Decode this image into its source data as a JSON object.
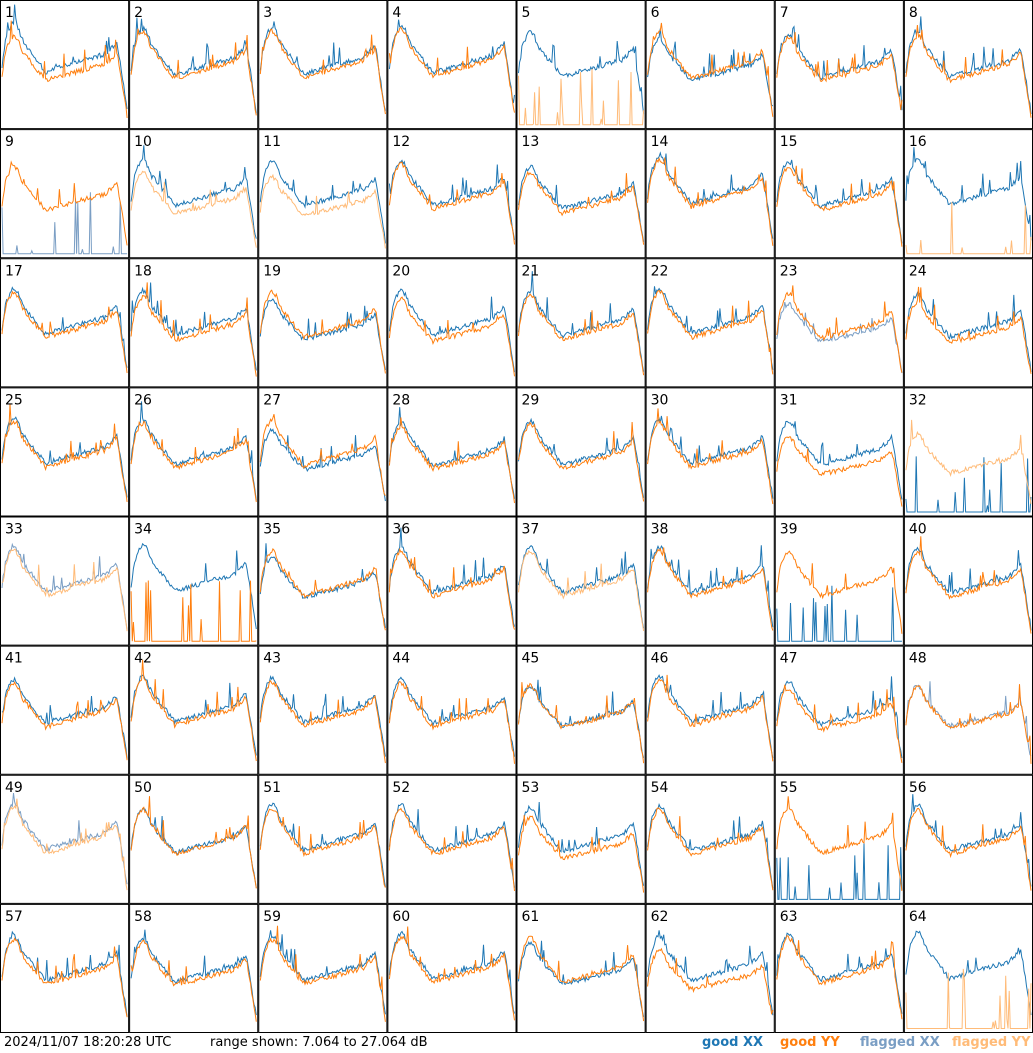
{
  "timestamp": "2024/11/07 18:20:28 UTC",
  "range_text": "range shown: 7.064 to 27.064 dB",
  "legend": {
    "good_xx": "good XX",
    "good_yy": "good YY",
    "flagged_xx": "flagged XX",
    "flagged_yy": "flagged YY"
  },
  "colors": {
    "good_xx": "#1f77b4",
    "good_yy": "#ff7f0e",
    "flagged_xx": "#7a9ec4",
    "flagged_yy": "#ffbb78"
  },
  "chart_data": {
    "type": "line",
    "grid": {
      "rows": 8,
      "cols": 8
    },
    "y_range_db": [
      7.064,
      27.064
    ],
    "panels": [
      {
        "id": "1",
        "xx": {
          "status": "good",
          "level": 0.72
        },
        "yy": {
          "status": "good",
          "level": 0.55
        }
      },
      {
        "id": "2",
        "xx": {
          "status": "good",
          "level": 0.62
        },
        "yy": {
          "status": "good",
          "level": 0.62
        }
      },
      {
        "id": "3",
        "xx": {
          "status": "good",
          "level": 0.64
        },
        "yy": {
          "status": "good",
          "level": 0.64
        }
      },
      {
        "id": "4",
        "xx": {
          "status": "good",
          "level": 0.68
        },
        "yy": {
          "status": "good",
          "level": 0.68
        }
      },
      {
        "id": "5",
        "xx": {
          "status": "good",
          "level": 0.55
        },
        "yy": {
          "status": "flagged",
          "level": 0.0
        }
      },
      {
        "id": "6",
        "xx": {
          "status": "good",
          "level": 0.42
        },
        "yy": {
          "status": "good",
          "level": 0.62
        }
      },
      {
        "id": "7",
        "xx": {
          "status": "good",
          "level": 0.52
        },
        "yy": {
          "status": "good",
          "level": 0.52
        }
      },
      {
        "id": "8",
        "xx": {
          "status": "good",
          "level": 0.55
        },
        "yy": {
          "status": "good",
          "level": 0.55
        }
      },
      {
        "id": "9",
        "xx": {
          "status": "flagged",
          "level": 0.0
        },
        "yy": {
          "status": "good",
          "level": 0.53
        }
      },
      {
        "id": "10",
        "xx": {
          "status": "good",
          "level": 0.57
        },
        "yy": {
          "status": "flagged",
          "level": 0.4
        }
      },
      {
        "id": "11",
        "xx": {
          "status": "good",
          "level": 0.55
        },
        "yy": {
          "status": "flagged",
          "level": 0.33
        }
      },
      {
        "id": "12",
        "xx": {
          "status": "good",
          "level": 0.57
        },
        "yy": {
          "status": "good",
          "level": 0.57
        }
      },
      {
        "id": "13",
        "xx": {
          "status": "good",
          "level": 0.45
        },
        "yy": {
          "status": "good",
          "level": 0.42
        }
      },
      {
        "id": "14",
        "xx": {
          "status": "good",
          "level": 0.65
        },
        "yy": {
          "status": "good",
          "level": 0.65
        }
      },
      {
        "id": "15",
        "xx": {
          "status": "good",
          "level": 0.55
        },
        "yy": {
          "status": "good",
          "level": 0.52
        }
      },
      {
        "id": "16",
        "xx": {
          "status": "good",
          "level": 0.6
        },
        "yy": {
          "status": "flagged",
          "level": 0.0
        }
      },
      {
        "id": "17",
        "xx": {
          "status": "good",
          "level": 0.58
        },
        "yy": {
          "status": "good",
          "level": 0.58
        }
      },
      {
        "id": "18",
        "xx": {
          "status": "good",
          "level": 0.55
        },
        "yy": {
          "status": "good",
          "level": 0.5
        }
      },
      {
        "id": "19",
        "xx": {
          "status": "good",
          "level": 0.38
        },
        "yy": {
          "status": "good",
          "level": 0.6
        }
      },
      {
        "id": "20",
        "xx": {
          "status": "good",
          "level": 0.55
        },
        "yy": {
          "status": "good",
          "level": 0.45
        }
      },
      {
        "id": "21",
        "xx": {
          "status": "good",
          "level": 0.52
        },
        "yy": {
          "status": "good",
          "level": 0.52
        }
      },
      {
        "id": "22",
        "xx": {
          "status": "good",
          "level": 0.6
        },
        "yy": {
          "status": "good",
          "level": 0.6
        }
      },
      {
        "id": "23",
        "xx": {
          "status": "flagged",
          "level": 0.3
        },
        "yy": {
          "status": "good",
          "level": 0.55
        }
      },
      {
        "id": "24",
        "xx": {
          "status": "good",
          "level": 0.48
        },
        "yy": {
          "status": "good",
          "level": 0.4
        }
      },
      {
        "id": "25",
        "xx": {
          "status": "good",
          "level": 0.58
        },
        "yy": {
          "status": "good",
          "level": 0.58
        }
      },
      {
        "id": "26",
        "xx": {
          "status": "good",
          "level": 0.55
        },
        "yy": {
          "status": "good",
          "level": 0.55
        }
      },
      {
        "id": "27",
        "xx": {
          "status": "good",
          "level": 0.35
        },
        "yy": {
          "status": "good",
          "level": 0.62
        }
      },
      {
        "id": "28",
        "xx": {
          "status": "good",
          "level": 0.5
        },
        "yy": {
          "status": "good",
          "level": 0.5
        }
      },
      {
        "id": "29",
        "xx": {
          "status": "good",
          "level": 0.52
        },
        "yy": {
          "status": "good",
          "level": 0.52
        }
      },
      {
        "id": "30",
        "xx": {
          "status": "good",
          "level": 0.55
        },
        "yy": {
          "status": "good",
          "level": 0.55
        }
      },
      {
        "id": "31",
        "xx": {
          "status": "good",
          "level": 0.52
        },
        "yy": {
          "status": "good",
          "level": 0.3
        }
      },
      {
        "id": "32",
        "xx": {
          "status": "good",
          "level": 0.0
        },
        "yy": {
          "status": "flagged",
          "level": 0.35
        }
      },
      {
        "id": "33",
        "xx": {
          "status": "flagged",
          "level": 0.6
        },
        "yy": {
          "status": "flagged",
          "level": 0.6
        }
      },
      {
        "id": "34",
        "xx": {
          "status": "good",
          "level": 0.62
        },
        "yy": {
          "status": "good",
          "level": 0.0
        }
      },
      {
        "id": "35",
        "xx": {
          "status": "good",
          "level": 0.4
        },
        "yy": {
          "status": "good",
          "level": 0.58
        }
      },
      {
        "id": "36",
        "xx": {
          "status": "good",
          "level": 0.58
        },
        "yy": {
          "status": "good",
          "level": 0.58
        }
      },
      {
        "id": "37",
        "xx": {
          "status": "good",
          "level": 0.58
        },
        "yy": {
          "status": "flagged",
          "level": 0.58
        }
      },
      {
        "id": "38",
        "xx": {
          "status": "good",
          "level": 0.58
        },
        "yy": {
          "status": "good",
          "level": 0.58
        }
      },
      {
        "id": "39",
        "xx": {
          "status": "good",
          "level": 0.0
        },
        "yy": {
          "status": "good",
          "level": 0.58
        }
      },
      {
        "id": "40",
        "xx": {
          "status": "good",
          "level": 0.55
        },
        "yy": {
          "status": "good",
          "level": 0.55
        }
      },
      {
        "id": "41",
        "xx": {
          "status": "good",
          "level": 0.52
        },
        "yy": {
          "status": "good",
          "level": 0.52
        }
      },
      {
        "id": "42",
        "xx": {
          "status": "good",
          "level": 0.58
        },
        "yy": {
          "status": "good",
          "level": 0.58
        }
      },
      {
        "id": "43",
        "xx": {
          "status": "good",
          "level": 0.55
        },
        "yy": {
          "status": "good",
          "level": 0.55
        }
      },
      {
        "id": "44",
        "xx": {
          "status": "good",
          "level": 0.52
        },
        "yy": {
          "status": "good",
          "level": 0.52
        }
      },
      {
        "id": "45",
        "xx": {
          "status": "good",
          "level": 0.4
        },
        "yy": {
          "status": "good",
          "level": 0.48
        }
      },
      {
        "id": "46",
        "xx": {
          "status": "good",
          "level": 0.58
        },
        "yy": {
          "status": "good",
          "level": 0.58
        }
      },
      {
        "id": "47",
        "xx": {
          "status": "good",
          "level": 0.48
        },
        "yy": {
          "status": "good",
          "level": 0.42
        }
      },
      {
        "id": "48",
        "xx": {
          "status": "flagged",
          "level": 0.4
        },
        "yy": {
          "status": "good",
          "level": 0.45
        }
      },
      {
        "id": "49",
        "xx": {
          "status": "flagged",
          "level": 0.62
        },
        "yy": {
          "status": "flagged",
          "level": 0.62
        }
      },
      {
        "id": "50",
        "xx": {
          "status": "good",
          "level": 0.5
        },
        "yy": {
          "status": "good",
          "level": 0.58
        }
      },
      {
        "id": "51",
        "xx": {
          "status": "good",
          "level": 0.6
        },
        "yy": {
          "status": "good",
          "level": 0.6
        }
      },
      {
        "id": "52",
        "xx": {
          "status": "good",
          "level": 0.58
        },
        "yy": {
          "status": "good",
          "level": 0.58
        }
      },
      {
        "id": "53",
        "xx": {
          "status": "good",
          "level": 0.55
        },
        "yy": {
          "status": "good",
          "level": 0.42
        }
      },
      {
        "id": "54",
        "xx": {
          "status": "good",
          "level": 0.58
        },
        "yy": {
          "status": "good",
          "level": 0.58
        }
      },
      {
        "id": "55",
        "xx": {
          "status": "good",
          "level": 0.0
        },
        "yy": {
          "status": "good",
          "level": 0.62
        }
      },
      {
        "id": "56",
        "xx": {
          "status": "good",
          "level": 0.58
        },
        "yy": {
          "status": "good",
          "level": 0.58
        }
      },
      {
        "id": "57",
        "xx": {
          "status": "good",
          "level": 0.55
        },
        "yy": {
          "status": "good",
          "level": 0.55
        }
      },
      {
        "id": "58",
        "xx": {
          "status": "good",
          "level": 0.5
        },
        "yy": {
          "status": "good",
          "level": 0.5
        }
      },
      {
        "id": "59",
        "xx": {
          "status": "good",
          "level": 0.55
        },
        "yy": {
          "status": "good",
          "level": 0.55
        }
      },
      {
        "id": "60",
        "xx": {
          "status": "good",
          "level": 0.6
        },
        "yy": {
          "status": "good",
          "level": 0.6
        }
      },
      {
        "id": "61",
        "xx": {
          "status": "good",
          "level": 0.4
        },
        "yy": {
          "status": "good",
          "level": 0.6
        }
      },
      {
        "id": "62",
        "xx": {
          "status": "good",
          "level": 0.55
        },
        "yy": {
          "status": "good",
          "level": 0.35
        }
      },
      {
        "id": "63",
        "xx": {
          "status": "good",
          "level": 0.58
        },
        "yy": {
          "status": "good",
          "level": 0.58
        }
      },
      {
        "id": "64",
        "xx": {
          "status": "good",
          "level": 0.62
        },
        "yy": {
          "status": "flagged",
          "level": 0.0
        }
      }
    ]
  }
}
